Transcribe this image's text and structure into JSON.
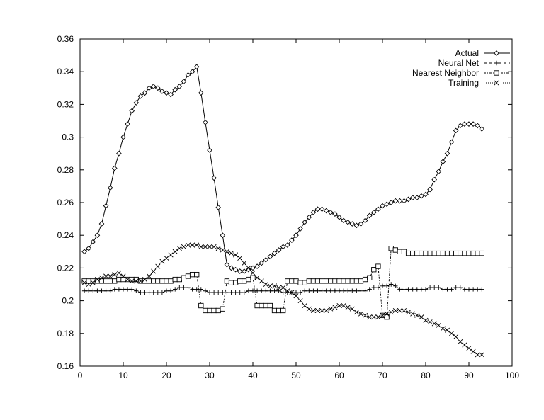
{
  "chart_data": {
    "type": "line",
    "title": "",
    "xlabel": "",
    "ylabel": "",
    "xlim": [
      0,
      100
    ],
    "ylim": [
      0.16,
      0.36
    ],
    "xticks": [
      "0",
      "10",
      "20",
      "30",
      "40",
      "50",
      "60",
      "70",
      "80",
      "90",
      "100"
    ],
    "yticks": [
      "0.16",
      "0.18",
      "0.2",
      "0.22",
      "0.24",
      "0.26",
      "0.28",
      "0.3",
      "0.32",
      "0.34",
      "0.36"
    ],
    "grid": false,
    "legend_position": "top-right",
    "x_start": 1,
    "series": [
      {
        "name": "Actual",
        "marker": "diamond",
        "line": "solid",
        "values": [
          0.23,
          0.232,
          0.236,
          0.24,
          0.247,
          0.258,
          0.269,
          0.281,
          0.29,
          0.3,
          0.308,
          0.316,
          0.321,
          0.325,
          0.327,
          0.33,
          0.331,
          0.33,
          0.328,
          0.327,
          0.326,
          0.329,
          0.331,
          0.334,
          0.338,
          0.34,
          0.343,
          0.327,
          0.309,
          0.292,
          0.275,
          0.257,
          0.24,
          0.222,
          0.22,
          0.219,
          0.218,
          0.218,
          0.219,
          0.22,
          0.221,
          0.223,
          0.225,
          0.227,
          0.229,
          0.231,
          0.233,
          0.234,
          0.237,
          0.24,
          0.244,
          0.248,
          0.251,
          0.254,
          0.256,
          0.256,
          0.255,
          0.254,
          0.253,
          0.251,
          0.249,
          0.248,
          0.247,
          0.246,
          0.247,
          0.249,
          0.252,
          0.254,
          0.256,
          0.258,
          0.259,
          0.26,
          0.261,
          0.261,
          0.261,
          0.262,
          0.263,
          0.263,
          0.264,
          0.265,
          0.268,
          0.274,
          0.279,
          0.285,
          0.29,
          0.297,
          0.304,
          0.307,
          0.308,
          0.308,
          0.308,
          0.307,
          0.305
        ]
      },
      {
        "name": "Neural Net",
        "marker": "plus",
        "line": "dashed",
        "values": [
          0.206,
          0.206,
          0.206,
          0.206,
          0.206,
          0.206,
          0.206,
          0.207,
          0.207,
          0.207,
          0.207,
          0.207,
          0.206,
          0.205,
          0.205,
          0.205,
          0.205,
          0.205,
          0.205,
          0.206,
          0.206,
          0.207,
          0.208,
          0.208,
          0.208,
          0.207,
          0.207,
          0.207,
          0.206,
          0.205,
          0.205,
          0.205,
          0.205,
          0.205,
          0.205,
          0.205,
          0.205,
          0.205,
          0.206,
          0.206,
          0.206,
          0.206,
          0.206,
          0.206,
          0.206,
          0.206,
          0.205,
          0.205,
          0.205,
          0.205,
          0.205,
          0.206,
          0.206,
          0.206,
          0.206,
          0.206,
          0.206,
          0.206,
          0.206,
          0.206,
          0.206,
          0.206,
          0.206,
          0.206,
          0.206,
          0.206,
          0.207,
          0.208,
          0.208,
          0.209,
          0.209,
          0.21,
          0.209,
          0.207,
          0.207,
          0.207,
          0.207,
          0.207,
          0.207,
          0.207,
          0.208,
          0.208,
          0.208,
          0.207,
          0.207,
          0.207,
          0.208,
          0.208,
          0.207,
          0.207,
          0.207,
          0.207,
          0.207
        ]
      },
      {
        "name": "Nearest Neighbor",
        "marker": "square",
        "line": "dash-dot",
        "values": [
          0.212,
          0.212,
          0.212,
          0.212,
          0.212,
          0.212,
          0.212,
          0.212,
          0.213,
          0.213,
          0.213,
          0.213,
          0.213,
          0.212,
          0.212,
          0.212,
          0.212,
          0.212,
          0.212,
          0.212,
          0.212,
          0.213,
          0.213,
          0.214,
          0.215,
          0.216,
          0.216,
          0.197,
          0.194,
          0.194,
          0.194,
          0.194,
          0.195,
          0.212,
          0.211,
          0.211,
          0.212,
          0.212,
          0.213,
          0.214,
          0.197,
          0.197,
          0.197,
          0.197,
          0.194,
          0.194,
          0.194,
          0.212,
          0.212,
          0.212,
          0.211,
          0.211,
          0.212,
          0.212,
          0.212,
          0.212,
          0.212,
          0.212,
          0.212,
          0.212,
          0.212,
          0.212,
          0.212,
          0.212,
          0.212,
          0.213,
          0.214,
          0.219,
          0.221,
          0.191,
          0.19,
          0.232,
          0.231,
          0.23,
          0.23,
          0.229,
          0.229,
          0.229,
          0.229,
          0.229,
          0.229,
          0.229,
          0.229,
          0.229,
          0.229,
          0.229,
          0.229,
          0.229,
          0.229,
          0.229,
          0.229,
          0.229,
          0.229
        ]
      },
      {
        "name": "Training",
        "marker": "cross",
        "line": "dotted",
        "values": [
          0.211,
          0.21,
          0.211,
          0.213,
          0.214,
          0.215,
          0.215,
          0.216,
          0.217,
          0.215,
          0.213,
          0.212,
          0.212,
          0.212,
          0.213,
          0.215,
          0.218,
          0.221,
          0.224,
          0.226,
          0.228,
          0.23,
          0.232,
          0.233,
          0.234,
          0.234,
          0.234,
          0.233,
          0.233,
          0.233,
          0.233,
          0.232,
          0.231,
          0.23,
          0.229,
          0.228,
          0.226,
          0.223,
          0.22,
          0.217,
          0.214,
          0.212,
          0.21,
          0.209,
          0.209,
          0.208,
          0.208,
          0.206,
          0.205,
          0.203,
          0.2,
          0.197,
          0.195,
          0.194,
          0.194,
          0.194,
          0.194,
          0.195,
          0.196,
          0.197,
          0.197,
          0.196,
          0.195,
          0.193,
          0.192,
          0.191,
          0.19,
          0.19,
          0.19,
          0.191,
          0.192,
          0.193,
          0.194,
          0.194,
          0.194,
          0.193,
          0.192,
          0.191,
          0.19,
          0.188,
          0.187,
          0.186,
          0.185,
          0.183,
          0.182,
          0.18,
          0.178,
          0.175,
          0.173,
          0.171,
          0.169,
          0.167,
          0.167
        ]
      }
    ]
  }
}
